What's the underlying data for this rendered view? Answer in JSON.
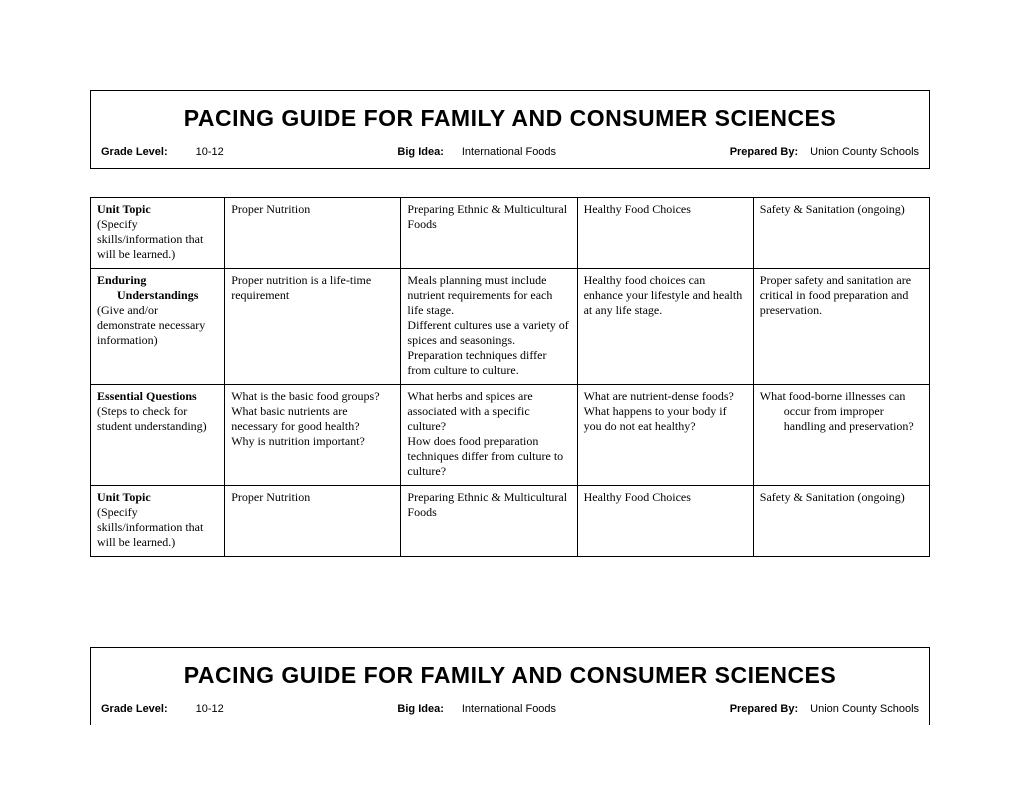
{
  "doc": {
    "title": "PACING GUIDE FOR FAMILY AND CONSUMER SCIENCES",
    "meta": {
      "grade_label": "Grade Level:",
      "grade_value": "10-12",
      "bigidea_label": "Big Idea:",
      "bigidea_value": "International Foods",
      "prepared_label": "Prepared By:",
      "prepared_value": "Union County Schools"
    }
  },
  "table": {
    "rows": [
      {
        "head_strong": "Unit Topic",
        "head_sub": "(Specify skills/information that will be learned.)",
        "c1": "Proper Nutrition",
        "c2": "Preparing Ethnic & Multicultural Foods",
        "c3": "Healthy Food Choices",
        "c4": "Safety & Sanitation (ongoing)"
      },
      {
        "head_strong": "Enduring",
        "head_indent": "Understandings",
        "head_sub": "(Give and/or demonstrate necessary information)",
        "c1": "Proper nutrition is a life-time requirement",
        "c2": "Meals planning must include nutrient requirements for each life stage.\nDifferent cultures use a variety of spices and seasonings.\nPreparation techniques differ from culture to culture.",
        "c3": "Healthy food choices can enhance your lifestyle and health at any life stage.",
        "c4": "Proper safety and sanitation are critical in food preparation and preservation."
      },
      {
        "head_strong": "Essential Questions",
        "head_sub": "(Steps to check for student understanding)",
        "c1": "What is the basic food groups?\nWhat basic nutrients are necessary for good health?\nWhy is nutrition important?",
        "c2": "What herbs and spices are associated with a specific culture?\nHow does food preparation techniques differ from culture to culture?",
        "c3": "What are nutrient-dense foods?\nWhat happens to your body if you do not eat healthy?",
        "c4_pre": "What food-borne illnesses can",
        "c4_indent": "occur from improper handling and preservation?"
      },
      {
        "head_strong": "Unit Topic",
        "head_sub": "(Specify skills/information that will be learned.)",
        "c1": "Proper Nutrition",
        "c2": "Preparing Ethnic & Multicultural Foods",
        "c3": "Healthy Food Choices",
        "c4": "Safety & Sanitation (ongoing)"
      }
    ]
  }
}
